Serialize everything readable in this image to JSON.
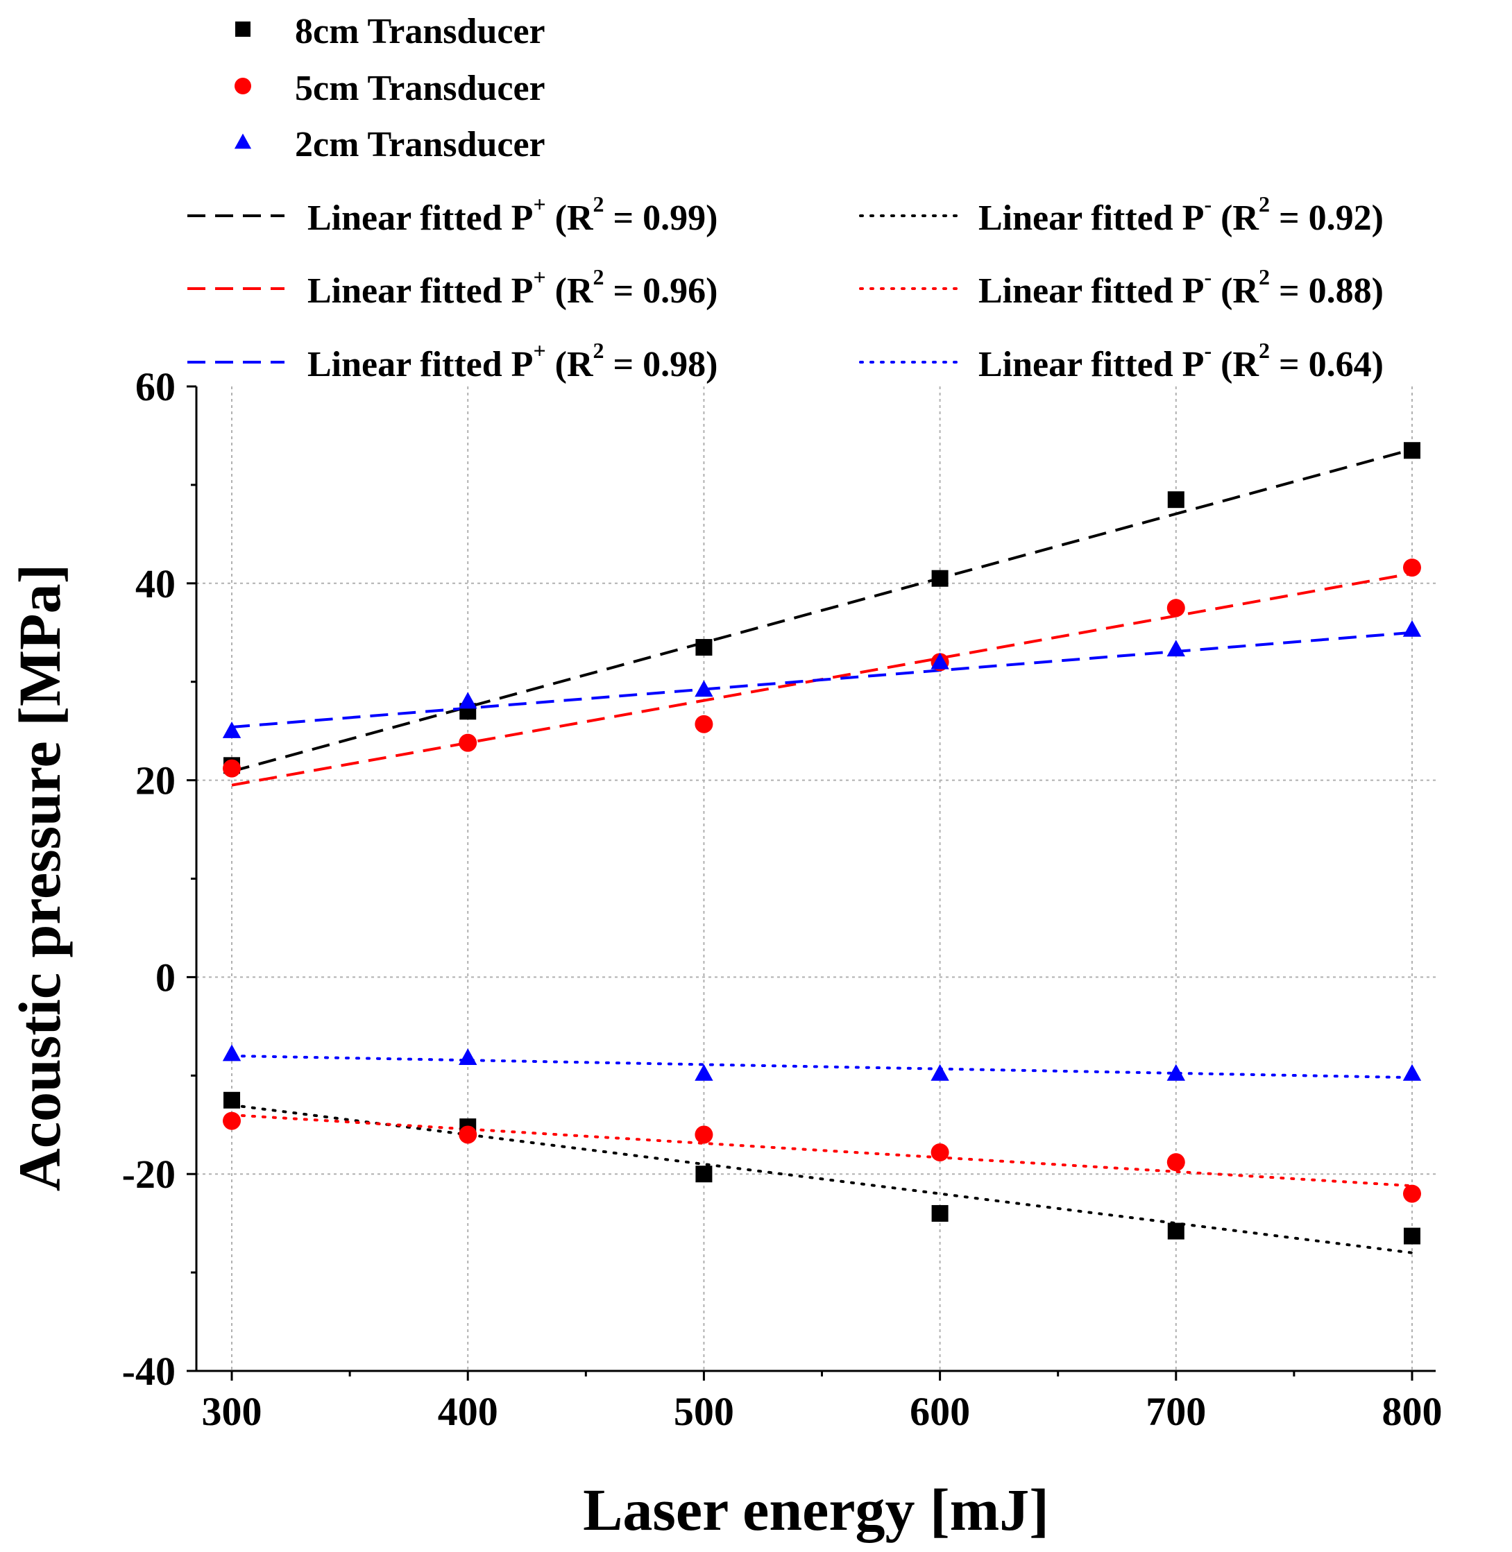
{
  "chart_data": {
    "type": "scatter",
    "title": "",
    "xlabel": "Laser energy [mJ]",
    "ylabel": "Acoustic pressure [MPa]",
    "xlim": [
      285,
      810
    ],
    "ylim": [
      -40,
      60
    ],
    "xticks": [
      300,
      400,
      500,
      600,
      700,
      800
    ],
    "yticks": [
      -40,
      -20,
      0,
      20,
      40,
      60
    ],
    "grid": true,
    "legend_position": "top",
    "x": [
      300,
      400,
      500,
      600,
      700,
      800
    ],
    "series": [
      {
        "name": "8cm Transducer",
        "color": "#000000",
        "marker": "square",
        "positive_values": [
          21.5,
          27.0,
          33.5,
          40.5,
          48.5,
          53.5
        ],
        "negative_values": [
          -12.5,
          -15.2,
          -20.0,
          -24.0,
          -25.8,
          -26.3
        ],
        "fit_positive": {
          "label": "Linear fitted",
          "peak": "P",
          "sign": "+",
          "r2_text": "= 0.99",
          "start": 20.9,
          "end": 53.6
        },
        "fit_negative": {
          "label": "Linear fitted",
          "peak": "P",
          "sign": "-",
          "r2_text": "= 0.92",
          "start": -13.0,
          "end": -28.0
        }
      },
      {
        "name": "5cm Transducer",
        "color": "#ff0000",
        "marker": "circle",
        "positive_values": [
          21.2,
          23.8,
          25.7,
          32.0,
          37.5,
          41.6
        ],
        "negative_values": [
          -14.6,
          -16.0,
          -16.0,
          -17.8,
          -18.8,
          -22.0
        ],
        "fit_positive": {
          "label": "Linear fitted",
          "peak": "P",
          "sign": "+",
          "r2_text": "= 0.96",
          "start": 19.5,
          "end": 41.0
        },
        "fit_negative": {
          "label": "Linear fitted",
          "peak": "P",
          "sign": "-",
          "r2_text": "= 0.88",
          "start": -14.0,
          "end": -21.2
        }
      },
      {
        "name": "2cm Transducer",
        "color": "#0000ff",
        "marker": "triangle",
        "positive_values": [
          25.0,
          28.0,
          29.2,
          32.0,
          33.3,
          35.3
        ],
        "negative_values": [
          -7.8,
          -8.2,
          -9.8,
          -9.8,
          -9.8,
          -9.8
        ],
        "fit_positive": {
          "label": "Linear fitted",
          "peak": "P",
          "sign": "+",
          "r2_text": "= 0.98",
          "start": 25.4,
          "end": 35.0
        },
        "fit_negative": {
          "label": "Linear fitted",
          "peak": "P",
          "sign": "-",
          "r2_text": "= 0.64",
          "start": -8.0,
          "end": -10.2
        }
      }
    ]
  }
}
